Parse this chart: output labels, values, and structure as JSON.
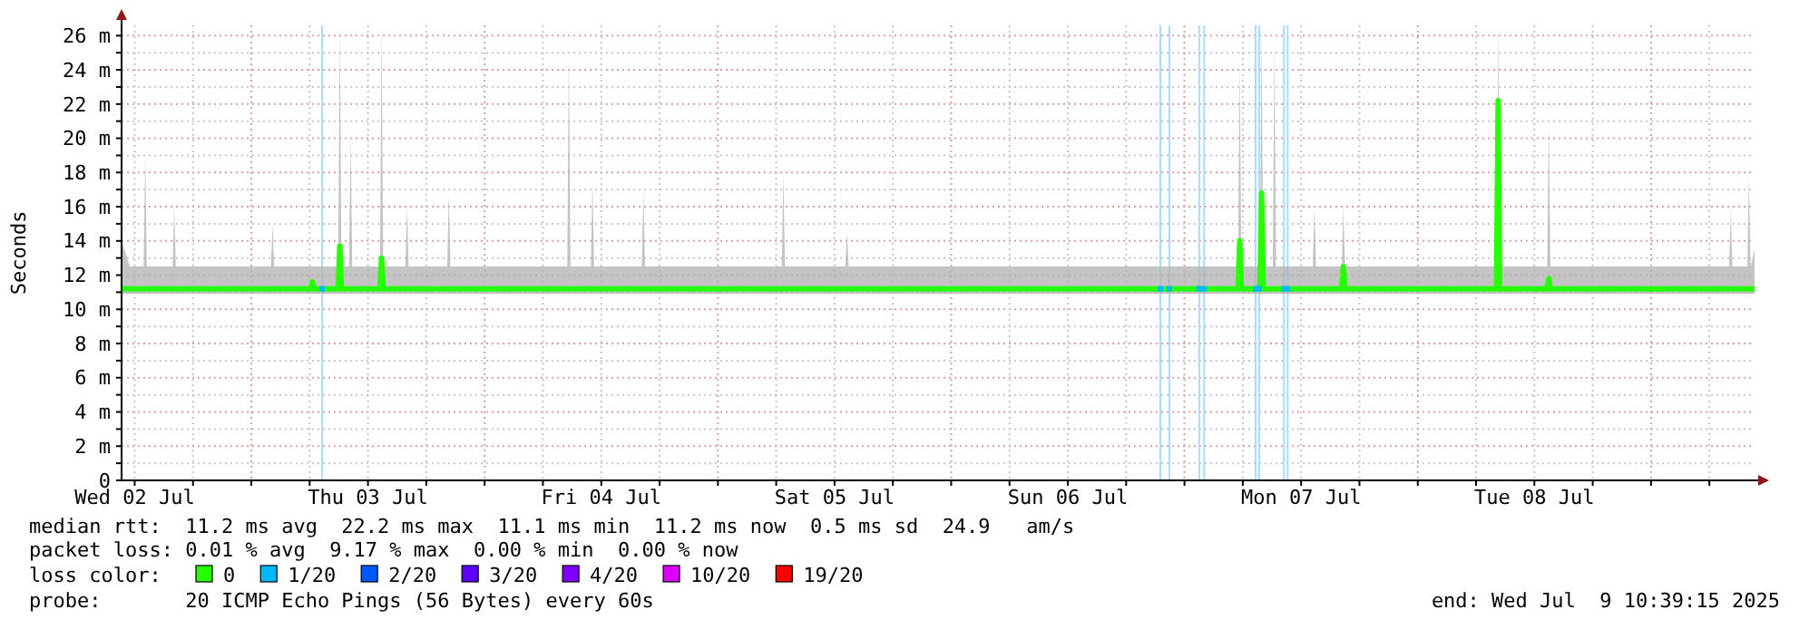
{
  "chart_data": {
    "type": "line",
    "ylabel": "Seconds",
    "legend": "bottom",
    "legend_title": "loss color:",
    "grid": true,
    "xlim": [
      "2025-07-02T10:39",
      "2025-07-09T10:39"
    ],
    "xticks": [
      {
        "value": "2025-07-02T12:00",
        "label": "Wed 02 Jul"
      },
      {
        "value": "2025-07-02T18:00",
        "label": null
      },
      {
        "value": "2025-07-03T00:00",
        "label": null
      },
      {
        "value": "2025-07-03T06:00",
        "label": null
      },
      {
        "value": "2025-07-03T12:00",
        "label": "Thu 03 Jul"
      },
      {
        "value": "2025-07-03T18:00",
        "label": null
      },
      {
        "value": "2025-07-04T00:00",
        "label": null
      },
      {
        "value": "2025-07-04T06:00",
        "label": null
      },
      {
        "value": "2025-07-04T12:00",
        "label": "Fri 04 Jul"
      },
      {
        "value": "2025-07-04T18:00",
        "label": null
      },
      {
        "value": "2025-07-05T00:00",
        "label": null
      },
      {
        "value": "2025-07-05T06:00",
        "label": null
      },
      {
        "value": "2025-07-05T12:00",
        "label": "Sat 05 Jul"
      },
      {
        "value": "2025-07-05T18:00",
        "label": null
      },
      {
        "value": "2025-07-06T00:00",
        "label": null
      },
      {
        "value": "2025-07-06T06:00",
        "label": null
      },
      {
        "value": "2025-07-06T12:00",
        "label": "Sun 06 Jul"
      },
      {
        "value": "2025-07-06T18:00",
        "label": null
      },
      {
        "value": "2025-07-07T00:00",
        "label": null
      },
      {
        "value": "2025-07-07T06:00",
        "label": null
      },
      {
        "value": "2025-07-07T12:00",
        "label": "Mon 07 Jul"
      },
      {
        "value": "2025-07-07T18:00",
        "label": null
      },
      {
        "value": "2025-07-08T00:00",
        "label": null
      },
      {
        "value": "2025-07-08T06:00",
        "label": null
      },
      {
        "value": "2025-07-08T12:00",
        "label": "Tue 08 Jul"
      },
      {
        "value": "2025-07-08T18:00",
        "label": null
      },
      {
        "value": "2025-07-09T00:00",
        "label": null
      },
      {
        "value": "2025-07-09T06:00",
        "label": null
      }
    ],
    "ylim": [
      0,
      26.6
    ],
    "yticks": [
      {
        "value": 0,
        "label": "0"
      },
      {
        "value": 1,
        "label": null
      },
      {
        "value": 2,
        "label": "2 m"
      },
      {
        "value": 3,
        "label": null
      },
      {
        "value": 4,
        "label": "4 m"
      },
      {
        "value": 5,
        "label": null
      },
      {
        "value": 6,
        "label": "6 m"
      },
      {
        "value": 7,
        "label": null
      },
      {
        "value": 8,
        "label": "8 m"
      },
      {
        "value": 9,
        "label": null
      },
      {
        "value": 10,
        "label": "10 m"
      },
      {
        "value": 11,
        "label": null
      },
      {
        "value": 12,
        "label": "12 m"
      },
      {
        "value": 13,
        "label": null
      },
      {
        "value": 14,
        "label": "14 m"
      },
      {
        "value": 15,
        "label": null
      },
      {
        "value": 16,
        "label": "16 m"
      },
      {
        "value": 17,
        "label": null
      },
      {
        "value": 18,
        "label": "18 m"
      },
      {
        "value": 19,
        "label": null
      },
      {
        "value": 20,
        "label": "20 m"
      },
      {
        "value": 21,
        "label": null
      },
      {
        "value": 22,
        "label": "22 m"
      },
      {
        "value": 23,
        "label": null
      },
      {
        "value": 24,
        "label": "24 m"
      },
      {
        "value": 25,
        "label": null
      },
      {
        "value": 26,
        "label": "26 m"
      }
    ],
    "ref_lines": [
      {
        "axis": "x",
        "value": "2025-07-03T07:17",
        "color": "#a8ddff"
      },
      {
        "axis": "x",
        "value": "2025-07-06T21:31",
        "color": "#a8ddff"
      },
      {
        "axis": "x",
        "value": "2025-07-06T22:27",
        "color": "#a8ddff"
      },
      {
        "axis": "x",
        "value": "2025-07-07T01:31",
        "color": "#a8ddff"
      },
      {
        "axis": "x",
        "value": "2025-07-07T02:01",
        "color": "#a8ddff"
      },
      {
        "axis": "x",
        "value": "2025-07-07T07:19",
        "color": "#a8ddff"
      },
      {
        "axis": "x",
        "value": "2025-07-07T07:41",
        "color": "#a8ddff"
      },
      {
        "axis": "x",
        "value": "2025-07-07T10:14",
        "color": "#a8ddff"
      },
      {
        "axis": "x",
        "value": "2025-07-07T10:37",
        "color": "#a8ddff"
      }
    ],
    "series": [
      {
        "name": "0",
        "color": "#26ff00",
        "x": [
          "2025-07-02T10:39",
          "2025-07-02T11:30",
          "2025-07-02T12:55",
          "2025-07-02T13:05",
          "2025-07-02T13:15",
          "2025-07-02T15:54",
          "2025-07-02T16:04",
          "2025-07-02T16:14",
          "2025-07-02T22:00",
          "2025-07-03T02:01",
          "2025-07-03T02:11",
          "2025-07-03T02:21",
          "2025-07-03T06:07",
          "2025-07-03T06:17",
          "2025-07-03T06:27",
          "2025-07-03T08:56",
          "2025-07-03T09:06",
          "2025-07-03T09:16",
          "2025-07-03T10:03",
          "2025-07-03T10:13",
          "2025-07-03T10:23",
          "2025-07-03T13:14",
          "2025-07-03T13:24",
          "2025-07-03T13:34",
          "2025-07-03T15:51",
          "2025-07-03T16:01",
          "2025-07-03T16:11",
          "2025-07-03T20:09",
          "2025-07-03T20:19",
          "2025-07-03T20:29",
          "2025-07-04T02:00",
          "2025-07-04T08:30",
          "2025-07-04T08:40",
          "2025-07-04T08:50",
          "2025-07-04T10:56",
          "2025-07-04T11:06",
          "2025-07-04T11:16",
          "2025-07-04T16:10",
          "2025-07-04T16:20",
          "2025-07-04T16:30",
          "2025-07-04T23:00",
          "2025-07-05T06:34",
          "2025-07-05T06:44",
          "2025-07-05T06:54",
          "2025-07-05T13:07",
          "2025-07-05T13:17",
          "2025-07-05T13:27",
          "2025-07-05T20:00",
          "2025-07-06T06:00",
          "2025-07-06T14:00",
          "2025-07-07T05:31",
          "2025-07-07T05:41",
          "2025-07-07T05:51",
          "2025-07-07T07:46",
          "2025-07-07T07:56",
          "2025-07-07T08:06",
          "2025-07-07T09:05",
          "2025-07-07T09:15",
          "2025-07-07T09:25",
          "2025-07-07T13:12",
          "2025-07-07T13:22",
          "2025-07-07T13:32",
          "2025-07-07T16:11",
          "2025-07-07T16:21",
          "2025-07-07T16:31",
          "2025-07-08T00:00",
          "2025-07-08T08:06",
          "2025-07-08T08:16",
          "2025-07-08T08:26",
          "2025-07-08T13:19",
          "2025-07-08T13:29",
          "2025-07-08T13:39",
          "2025-07-08T20:00",
          "2025-07-09T08:02",
          "2025-07-09T08:12",
          "2025-07-09T08:22",
          "2025-07-09T09:54",
          "2025-07-09T10:04",
          "2025-07-09T10:14",
          "2025-07-09T10:39"
        ],
        "values": [
          11.2,
          11.2,
          11.2,
          11.2,
          11.2,
          11.2,
          11.2,
          11.2,
          11.2,
          11.2,
          11.2,
          11.2,
          11.2,
          11.6,
          11.2,
          11.2,
          13.7,
          11.2,
          11.2,
          11.2,
          11.2,
          11.2,
          13.0,
          11.2,
          11.2,
          11.2,
          11.2,
          11.2,
          11.2,
          11.2,
          11.2,
          11.2,
          11.2,
          11.2,
          11.2,
          11.2,
          11.2,
          11.2,
          11.2,
          11.2,
          11.2,
          11.2,
          11.2,
          11.2,
          11.2,
          11.2,
          11.2,
          11.2,
          11.2,
          11.2,
          11.2,
          14.0,
          11.2,
          11.2,
          16.8,
          11.2,
          11.2,
          11.2,
          11.2,
          11.2,
          11.2,
          11.2,
          11.2,
          12.5,
          11.2,
          11.2,
          11.2,
          22.2,
          11.2,
          11.2,
          11.8,
          11.2,
          11.2,
          11.2,
          11.2,
          11.2,
          11.2,
          11.2,
          11.2,
          11.2
        ],
        "lower": [
          10.9,
          10.9,
          10.9,
          10.9,
          10.9,
          10.9,
          10.9,
          10.9,
          10.9,
          10.9,
          10.9,
          10.9,
          10.9,
          10.9,
          10.9,
          10.9,
          10.9,
          10.9,
          10.9,
          10.9,
          10.9,
          10.9,
          10.9,
          10.9,
          10.9,
          10.9,
          10.9,
          10.9,
          10.9,
          10.9,
          10.9,
          10.9,
          10.9,
          10.9,
          10.9,
          10.9,
          10.9,
          10.9,
          10.9,
          10.9,
          10.9,
          10.9,
          10.9,
          10.9,
          10.9,
          10.9,
          10.9,
          10.9,
          10.9,
          10.9,
          10.9,
          10.9,
          10.9,
          10.9,
          10.9,
          10.9,
          10.9,
          10.9,
          10.9,
          10.9,
          10.9,
          10.9,
          10.9,
          10.9,
          10.9,
          10.9,
          10.9,
          10.9,
          10.9,
          10.9,
          10.9,
          10.9,
          10.9,
          10.9,
          10.9,
          10.9,
          10.9,
          10.9,
          10.9,
          10.9
        ],
        "upper": [
          14.0,
          12.5,
          12.5,
          19.0,
          12.5,
          12.5,
          16.0,
          12.5,
          12.5,
          12.5,
          15.0,
          12.5,
          12.5,
          12.5,
          12.5,
          12.5,
          26.6,
          12.5,
          12.5,
          20.0,
          12.5,
          12.5,
          26.6,
          12.5,
          12.5,
          16.0,
          12.5,
          12.5,
          16.7,
          12.5,
          12.5,
          12.5,
          24.7,
          12.5,
          12.5,
          17.5,
          12.5,
          12.5,
          17.0,
          12.5,
          12.5,
          12.5,
          18.0,
          12.5,
          12.5,
          14.5,
          12.5,
          12.5,
          12.5,
          12.5,
          12.5,
          24.5,
          12.5,
          12.5,
          26.6,
          12.5,
          12.5,
          25.5,
          12.5,
          12.5,
          16.0,
          12.5,
          12.5,
          16.0,
          12.5,
          12.5,
          12.5,
          26.6,
          12.5,
          12.5,
          20.8,
          12.5,
          12.5,
          12.5,
          15.8,
          12.5,
          12.5,
          17.8,
          12.5,
          13.5
        ]
      },
      {
        "name": "1/20",
        "type": "scatter",
        "color": "#00b8ff",
        "x": [
          "2025-07-03T07:17",
          "2025-07-06T21:31",
          "2025-07-06T22:27",
          "2025-07-07T01:31",
          "2025-07-07T02:01",
          "2025-07-07T07:19",
          "2025-07-07T07:41",
          "2025-07-07T10:14",
          "2025-07-07T10:37"
        ],
        "values": [
          11.2,
          11.2,
          11.2,
          11.2,
          11.2,
          11.2,
          11.2,
          11.2,
          11.2
        ]
      },
      {
        "name": "2/20",
        "type": "scatter",
        "color": "#0059ff"
      },
      {
        "name": "3/20",
        "type": "scatter",
        "color": "#5e00ff"
      },
      {
        "name": "4/20",
        "type": "scatter",
        "color": "#7e00ff"
      },
      {
        "name": "10/20",
        "type": "scatter",
        "color": "#dd00ff"
      },
      {
        "name": "19/20",
        "type": "scatter",
        "color": "#ff0000"
      }
    ],
    "annotations": [
      "median rtt:  11.2 ms avg  22.2 ms max  11.1 ms min  11.2 ms now  0.5 ms sd  24.9   am/s",
      "packet loss: 0.01 % avg  9.17 % max  0.00 % min  0.00 % now",
      "probe:       20 ICMP Echo Pings (56 Bytes) every 60s",
      "end: Wed Jul  9 10:39:15 2025"
    ]
  }
}
